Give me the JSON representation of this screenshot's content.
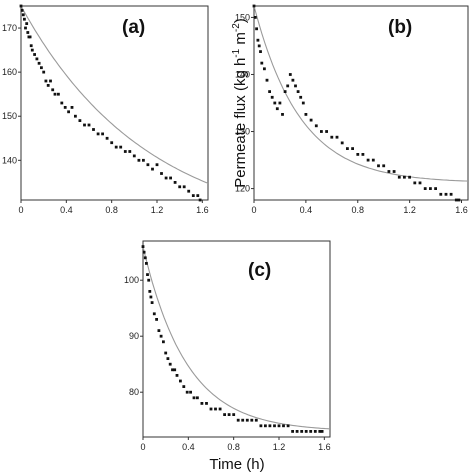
{
  "figure": {
    "ylabel": "Permeate flux (kg h -1 m-2)",
    "ylabel_parts": [
      "Permeate flux (kg h",
      "-1",
      " m",
      "-2",
      ")"
    ],
    "xlabel": "Time (h)"
  },
  "chart_data": [
    {
      "type": "scatter",
      "panel_label": "(a)",
      "xlim": [
        0,
        1.65
      ],
      "ylim": [
        131,
        175
      ],
      "xticks": [
        0,
        0.4,
        0.8,
        1.2,
        1.6
      ],
      "xtick_labels": [
        "0",
        "0.4",
        "0.8",
        "1.2",
        "1.6"
      ],
      "yticks": [
        140,
        150,
        160,
        170
      ],
      "ytick_labels": [
        "140",
        "150",
        "160",
        "170"
      ],
      "grid": false,
      "fit_curve": {
        "y0": 175,
        "yinf": 123,
        "k": 0.9
      },
      "series": [
        {
          "x": [
            0.0,
            0.01,
            0.02,
            0.03,
            0.04,
            0.05,
            0.06,
            0.07,
            0.08,
            0.09,
            0.1,
            0.12,
            0.14,
            0.16,
            0.18,
            0.2,
            0.22,
            0.24,
            0.26,
            0.28,
            0.3,
            0.33,
            0.36,
            0.39,
            0.42,
            0.45,
            0.48,
            0.52,
            0.56,
            0.6,
            0.64,
            0.68,
            0.72,
            0.76,
            0.8,
            0.84,
            0.88,
            0.92,
            0.96,
            1.0,
            1.04,
            1.08,
            1.12,
            1.16,
            1.2,
            1.24,
            1.28,
            1.32,
            1.36,
            1.4,
            1.44,
            1.48,
            1.52,
            1.56,
            1.58
          ],
          "y": [
            175,
            174,
            173,
            172,
            170,
            171,
            169,
            168,
            168,
            166,
            165,
            164,
            163,
            162,
            161,
            160,
            158,
            157,
            158,
            156,
            155,
            155,
            153,
            152,
            151,
            152,
            150,
            149,
            148,
            148,
            147,
            146,
            146,
            145,
            144,
            143,
            143,
            142,
            142,
            141,
            140,
            140,
            139,
            138,
            139,
            137,
            136,
            136,
            135,
            134,
            134,
            133,
            132,
            132,
            131
          ]
        }
      ]
    },
    {
      "type": "scatter",
      "panel_label": "(b)",
      "xlim": [
        0,
        1.65
      ],
      "ylim": [
        118,
        152
      ],
      "xticks": [
        0,
        0.4,
        0.8,
        1.2,
        1.6
      ],
      "xtick_labels": [
        "0",
        "0.4",
        "0.8",
        "1.2",
        "1.6"
      ],
      "yticks": [
        120,
        130,
        140,
        150
      ],
      "ytick_labels": [
        "120",
        "130",
        "140",
        "150"
      ],
      "grid": false,
      "fit_curve": {
        "y0": 152,
        "yinf": 121,
        "k": 2.8
      },
      "series": [
        {
          "x": [
            0.0,
            0.01,
            0.02,
            0.03,
            0.04,
            0.05,
            0.06,
            0.08,
            0.1,
            0.12,
            0.14,
            0.16,
            0.18,
            0.2,
            0.22,
            0.24,
            0.26,
            0.28,
            0.3,
            0.32,
            0.34,
            0.36,
            0.38,
            0.4,
            0.44,
            0.48,
            0.52,
            0.56,
            0.6,
            0.64,
            0.68,
            0.72,
            0.76,
            0.8,
            0.84,
            0.88,
            0.92,
            0.96,
            1.0,
            1.04,
            1.08,
            1.12,
            1.16,
            1.2,
            1.24,
            1.28,
            1.32,
            1.36,
            1.4,
            1.44,
            1.48,
            1.52,
            1.56,
            1.58
          ],
          "y": [
            152,
            150,
            148,
            146,
            145,
            144,
            142,
            141,
            139,
            137,
            136,
            135,
            134,
            135,
            133,
            137,
            138,
            140,
            139,
            138,
            137,
            136,
            135,
            133,
            132,
            131,
            130,
            130,
            129,
            129,
            128,
            127,
            127,
            126,
            126,
            125,
            125,
            124,
            124,
            123,
            123,
            122,
            122,
            122,
            121,
            121,
            120,
            120,
            120,
            119,
            119,
            119,
            118,
            118
          ]
        }
      ]
    },
    {
      "type": "scatter",
      "panel_label": "(c)",
      "xlim": [
        0,
        1.65
      ],
      "ylim": [
        72,
        107
      ],
      "xticks": [
        0,
        0.4,
        0.8,
        1.2,
        1.6
      ],
      "xtick_labels": [
        "0",
        "0.4",
        "0.8",
        "1.2",
        "1.6"
      ],
      "yticks": [
        80,
        90,
        100
      ],
      "ytick_labels": [
        "80",
        "90",
        "100"
      ],
      "grid": false,
      "fit_curve": {
        "y0": 106,
        "yinf": 73,
        "k": 2.6
      },
      "series": [
        {
          "x": [
            0.0,
            0.01,
            0.02,
            0.03,
            0.04,
            0.05,
            0.06,
            0.07,
            0.08,
            0.1,
            0.12,
            0.14,
            0.16,
            0.18,
            0.2,
            0.22,
            0.24,
            0.26,
            0.28,
            0.3,
            0.33,
            0.36,
            0.39,
            0.42,
            0.45,
            0.48,
            0.52,
            0.56,
            0.6,
            0.64,
            0.68,
            0.72,
            0.76,
            0.8,
            0.84,
            0.88,
            0.92,
            0.96,
            1.0,
            1.04,
            1.08,
            1.12,
            1.16,
            1.2,
            1.24,
            1.28,
            1.32,
            1.36,
            1.4,
            1.44,
            1.48,
            1.52,
            1.56,
            1.58
          ],
          "y": [
            106,
            105,
            104,
            103,
            101,
            100,
            98,
            97,
            96,
            94,
            93,
            91,
            90,
            89,
            87,
            86,
            85,
            84,
            84,
            83,
            82,
            81,
            80,
            80,
            79,
            79,
            78,
            78,
            77,
            77,
            77,
            76,
            76,
            76,
            75,
            75,
            75,
            75,
            75,
            74,
            74,
            74,
            74,
            74,
            74,
            74,
            73,
            73,
            73,
            73,
            73,
            73,
            73,
            73
          ]
        }
      ]
    }
  ]
}
